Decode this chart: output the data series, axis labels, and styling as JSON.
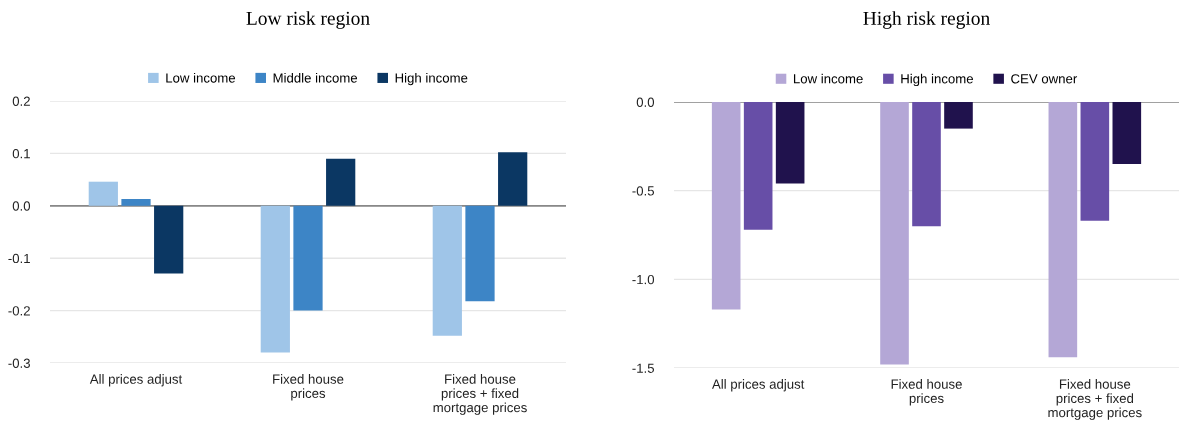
{
  "chart_data": [
    {
      "type": "bar",
      "title": "Low risk region",
      "categories": [
        "All prices adjust",
        "Fixed house\nprices",
        "Fixed house\nprices + fixed\nmortgage prices"
      ],
      "series": [
        {
          "name": "Low income",
          "color": "#9fc5e8",
          "values": [
            0.046,
            -0.28,
            -0.248
          ]
        },
        {
          "name": "Middle income",
          "color": "#3d85c6",
          "values": [
            0.013,
            -0.2,
            -0.182
          ]
        },
        {
          "name": "High income",
          "color": "#0b3763",
          "values": [
            -0.129,
            0.09,
            0.102
          ]
        }
      ],
      "ylim": [
        -0.3,
        0.2
      ],
      "yticks": [
        {
          "value": -0.3,
          "label": "-0.3"
        },
        {
          "value": -0.2,
          "label": "-0.2"
        },
        {
          "value": -0.1,
          "label": "-0.1"
        },
        {
          "value": 0,
          "label": "0.0"
        },
        0.1,
        0.2
      ],
      "ref_lines": [
        {
          "axis": "y",
          "value": 0,
          "color": "#888888"
        }
      ],
      "grid": "y",
      "legend": "top"
    },
    {
      "type": "bar",
      "title": "High risk region",
      "categories": [
        "All prices adjust",
        "Fixed house\nprices",
        "Fixed house\nprices + fixed\nmortgage prices"
      ],
      "series": [
        {
          "name": "Low income",
          "color": "#b4a7d6",
          "values": [
            -1.17,
            -1.48,
            -1.44
          ]
        },
        {
          "name": "High income",
          "color": "#674ea7",
          "values": [
            -0.72,
            -0.7,
            -0.67
          ]
        },
        {
          "name": "CEV owner",
          "color": "#20124d",
          "values": [
            -0.46,
            -0.15,
            -0.35
          ]
        }
      ],
      "ylim": [
        -1.5,
        0
      ],
      "yticks": [
        {
          "value": -1.5,
          "label": "-1.5"
        },
        {
          "value": -1.0,
          "label": "-1.0"
        },
        {
          "value": -0.5,
          "label": "-0.5"
        },
        {
          "value": 0,
          "label": "0.0"
        }
      ],
      "ref_lines": [
        {
          "axis": "y",
          "value": 0,
          "color": "#888888"
        }
      ],
      "grid": "y",
      "legend": "top"
    }
  ]
}
